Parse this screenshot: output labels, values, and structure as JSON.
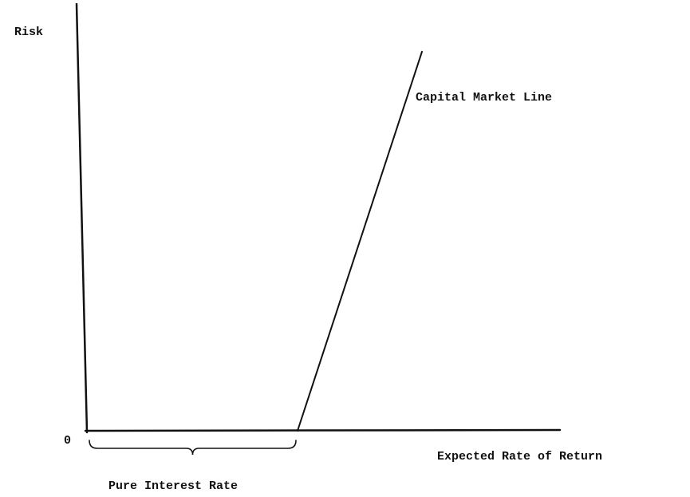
{
  "chart_data": {
    "type": "line",
    "ylabel": "Risk",
    "xlabel": "Expected Rate of Return",
    "origin_label": "0",
    "series": [
      {
        "name": "Capital Market Line",
        "x": [
          0.44,
          0.7
        ],
        "y": [
          0,
          0.88
        ]
      }
    ],
    "annotations": [
      {
        "text": "Pure Interest Rate",
        "from": 0,
        "to": 0.44
      }
    ],
    "xlim": [
      0,
      1
    ],
    "ylim": [
      0,
      1
    ],
    "grid": false,
    "legend": "none"
  }
}
